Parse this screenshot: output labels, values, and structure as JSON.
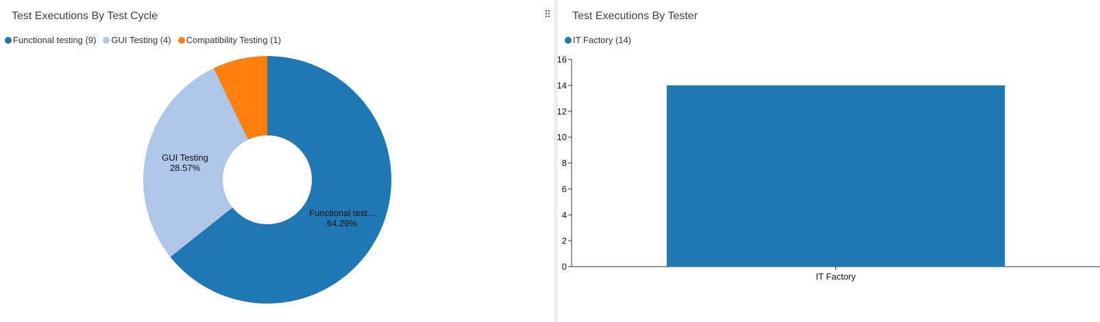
{
  "charts": {
    "cycle": {
      "title": "Test Executions By Test Cycle",
      "legend": [
        {
          "label": "Functional testing (9)"
        },
        {
          "label": "GUI Testing (4)"
        },
        {
          "label": "Compatibility Testing (1)"
        }
      ],
      "slice_labels": [
        {
          "name": "Functional test...",
          "percent": "64.29%"
        },
        {
          "name": "GUI Testing",
          "percent": "28.57%"
        }
      ]
    },
    "tester": {
      "title": "Test Executions By Tester",
      "legend": [
        {
          "label": "IT Factory (14)"
        }
      ]
    }
  },
  "colors": {
    "dark_blue": "#1f77b4",
    "light_blue": "#aec7e8",
    "orange": "#ff7f0e",
    "axis": "#333333"
  },
  "icons": {
    "drag_handle": "drag-handle-icon"
  },
  "chart_data": [
    {
      "type": "pie",
      "title": "Test Executions By Test Cycle",
      "donut": true,
      "categories": [
        "Functional testing",
        "GUI Testing",
        "Compatibility Testing"
      ],
      "values": [
        9,
        4,
        1
      ],
      "colors": [
        "#1f77b4",
        "#aec7e8",
        "#ff7f0e"
      ],
      "legend": "top-left"
    },
    {
      "type": "bar",
      "title": "Test Executions By Tester",
      "categories": [
        "IT Factory"
      ],
      "values": [
        14
      ],
      "ylim": [
        0,
        16
      ],
      "yticks": [
        0,
        2,
        4,
        6,
        8,
        10,
        12,
        14,
        16
      ],
      "xlabel": "",
      "ylabel": "",
      "grid": false,
      "legend": "top-left"
    }
  ]
}
